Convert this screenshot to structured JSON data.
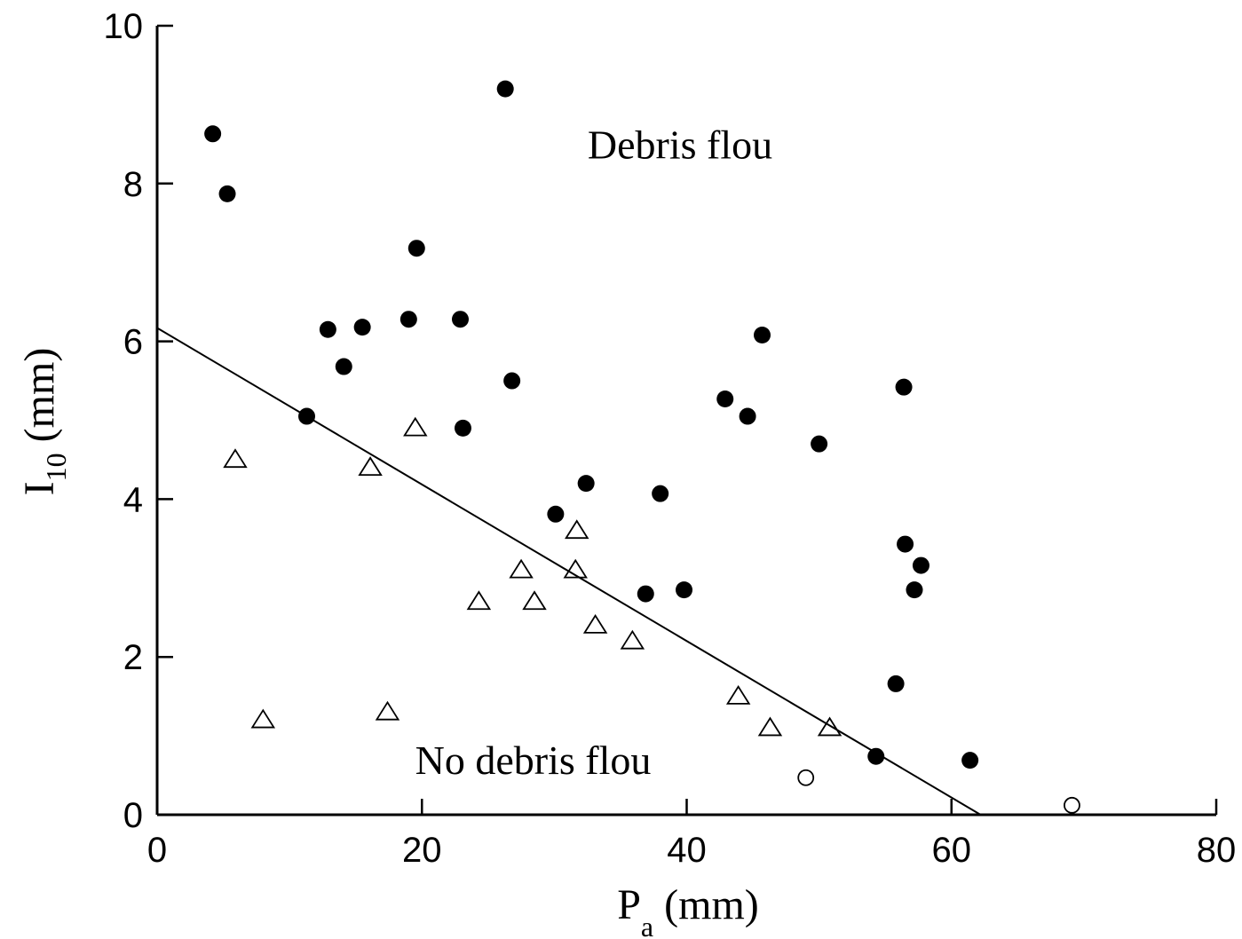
{
  "chart_data": {
    "type": "scatter",
    "xlabel": {
      "main": "P",
      "sub": "a",
      "unit": " (mm)"
    },
    "ylabel": {
      "main": "I",
      "sub": "10",
      "unit": " (mm)"
    },
    "xlim": [
      0,
      80
    ],
    "ylim": [
      0,
      10
    ],
    "xticks": [
      0,
      20,
      40,
      60,
      80
    ],
    "yticks": [
      0,
      2,
      4,
      6,
      8,
      10
    ],
    "xtick_labels": [
      "0",
      "20",
      "40",
      "60",
      "80"
    ],
    "ytick_labels": [
      "0",
      "2",
      "4",
      "6",
      "8",
      "10"
    ],
    "annotations": [
      {
        "text": "Debris flou",
        "x": 39.5,
        "y": 8.5
      },
      {
        "text": "No debris flou",
        "x": 28.4,
        "y": 0.7
      }
    ],
    "series": [
      {
        "marker": "filled-circle",
        "points": [
          [
            4.2,
            8.63
          ],
          [
            5.3,
            7.87
          ],
          [
            26.3,
            9.2
          ],
          [
            19.6,
            7.18
          ],
          [
            12.9,
            6.15
          ],
          [
            15.5,
            6.18
          ],
          [
            19.0,
            6.28
          ],
          [
            22.9,
            6.28
          ],
          [
            14.1,
            5.68
          ],
          [
            26.8,
            5.5
          ],
          [
            11.3,
            5.05
          ],
          [
            23.1,
            4.9
          ],
          [
            32.4,
            4.2
          ],
          [
            38.0,
            4.07
          ],
          [
            30.1,
            3.81
          ],
          [
            36.9,
            2.8
          ],
          [
            39.8,
            2.85
          ],
          [
            45.7,
            6.08
          ],
          [
            42.9,
            5.27
          ],
          [
            44.6,
            5.05
          ],
          [
            50.0,
            4.7
          ],
          [
            56.4,
            5.42
          ],
          [
            56.5,
            3.43
          ],
          [
            57.7,
            3.16
          ],
          [
            57.2,
            2.85
          ],
          [
            55.8,
            1.66
          ],
          [
            54.3,
            0.74
          ],
          [
            61.4,
            0.69
          ]
        ]
      },
      {
        "marker": "open-triangle",
        "points": [
          [
            5.9,
            4.5
          ],
          [
            16.1,
            4.4
          ],
          [
            19.5,
            4.9
          ],
          [
            8.0,
            1.2
          ],
          [
            17.4,
            1.3
          ],
          [
            24.3,
            2.7
          ],
          [
            27.5,
            3.1
          ],
          [
            28.5,
            2.7
          ],
          [
            31.7,
            3.6
          ],
          [
            31.6,
            3.1
          ],
          [
            33.1,
            2.4
          ],
          [
            35.9,
            2.2
          ],
          [
            43.9,
            1.5
          ],
          [
            46.3,
            1.1
          ],
          [
            50.8,
            1.1
          ]
        ]
      },
      {
        "marker": "open-circle",
        "points": [
          [
            49.0,
            0.47
          ],
          [
            69.1,
            0.12
          ]
        ]
      }
    ],
    "fit_line": {
      "x": [
        0,
        62.2
      ],
      "y": [
        6.17,
        0
      ]
    }
  },
  "colors": {
    "ink": "#000000",
    "background": "#ffffff"
  }
}
